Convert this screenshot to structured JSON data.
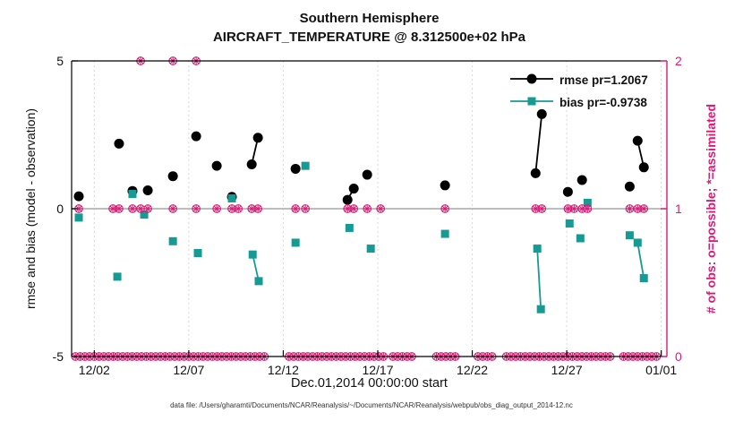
{
  "chart_data": {
    "type": "scatter",
    "title": "Southern Hemisphere",
    "subtitle": "AIRCRAFT_TEMPERATURE @ 8.312500e+02 hPa",
    "xlabel": "Dec.01,2014 00:00:00 start",
    "ylabel_left": "rmse and bias (model - observation)",
    "ylabel_right": "# of obs: o=possible; *=assimilated",
    "x_domain": [
      0.8,
      32.3
    ],
    "y_left_domain": [
      -5,
      5
    ],
    "y_right_domain": [
      0,
      2
    ],
    "x_ticks": [
      {
        "day": 2,
        "label": "12/02"
      },
      {
        "day": 7,
        "label": "12/07"
      },
      {
        "day": 12,
        "label": "12/12"
      },
      {
        "day": 17,
        "label": "12/17"
      },
      {
        "day": 22,
        "label": "12/22"
      },
      {
        "day": 27,
        "label": "12/27"
      },
      {
        "day": 32,
        "label": "01/01"
      }
    ],
    "left_ticks": [
      {
        "v": -5,
        "label": "-5"
      },
      {
        "v": 0,
        "label": "0"
      },
      {
        "v": 5,
        "label": "5"
      }
    ],
    "right_ticks": [
      {
        "v": 0,
        "label": "0"
      },
      {
        "v": 1,
        "label": "1"
      },
      {
        "v": 2,
        "label": "2"
      }
    ],
    "series": [
      {
        "name": "rmse",
        "marker": "circle",
        "color": "#000000",
        "legend_label": "rmse pr=1.2067",
        "segments": [
          [
            [
              1.18,
              0.42
            ]
          ],
          [
            [
              3.31,
              2.2
            ]
          ],
          [
            [
              4.02,
              0.6
            ]
          ],
          [
            [
              4.83,
              0.62
            ]
          ],
          [
            [
              6.16,
              1.1
            ]
          ],
          [
            [
              7.39,
              2.45
            ]
          ],
          [
            [
              8.48,
              1.45
            ]
          ],
          [
            [
              9.28,
              0.4
            ]
          ],
          [
            [
              10.33,
              1.5
            ],
            [
              10.66,
              2.4
            ]
          ],
          [
            [
              12.65,
              1.35
            ]
          ],
          [
            [
              15.4,
              0.3
            ],
            [
              15.73,
              0.68
            ]
          ],
          [
            [
              16.44,
              1.15
            ]
          ],
          [
            [
              20.56,
              0.79
            ]
          ],
          [
            [
              25.35,
              1.2
            ],
            [
              25.68,
              3.2
            ]
          ],
          [
            [
              27.06,
              0.57
            ]
          ],
          [
            [
              27.81,
              0.97
            ]
          ],
          [
            [
              30.33,
              0.75
            ]
          ],
          [
            [
              30.75,
              2.3
            ],
            [
              31.08,
              1.4
            ]
          ]
        ]
      },
      {
        "name": "bias",
        "marker": "square",
        "color": "#169a94",
        "legend_label": "bias pr=-0.9738",
        "segments": [
          [
            [
              1.18,
              -0.3
            ]
          ],
          [
            [
              3.22,
              -2.3
            ]
          ],
          [
            [
              4.02,
              0.5
            ]
          ],
          [
            [
              4.64,
              -0.2
            ]
          ],
          [
            [
              6.16,
              -1.1
            ]
          ],
          [
            [
              7.48,
              -1.5
            ]
          ],
          [
            [
              9.28,
              0.35
            ]
          ],
          [
            [
              10.38,
              -1.55
            ],
            [
              10.7,
              -2.45
            ]
          ],
          [
            [
              12.65,
              -1.15
            ]
          ],
          [
            [
              13.17,
              1.45
            ]
          ],
          [
            [
              15.5,
              -0.65
            ]
          ],
          [
            [
              16.63,
              -1.35
            ]
          ],
          [
            [
              20.56,
              -0.85
            ]
          ],
          [
            [
              25.44,
              -1.35
            ],
            [
              25.63,
              -3.4
            ]
          ],
          [
            [
              27.15,
              -0.5
            ]
          ],
          [
            [
              27.72,
              -1.0
            ]
          ],
          [
            [
              28.1,
              0.2
            ]
          ],
          [
            [
              30.33,
              -0.9
            ]
          ],
          [
            [
              30.75,
              -1.15
            ],
            [
              31.08,
              -2.35
            ]
          ]
        ]
      }
    ],
    "obs_markers": {
      "color": "#d81b74",
      "top_days": [
        4.45,
        6.16,
        7.39
      ],
      "mid_days": [
        1.18,
        2.98,
        3.31,
        4.02,
        4.45,
        4.83,
        6.16,
        7.39,
        8.48,
        9.28,
        9.62,
        10.33,
        10.66,
        12.65,
        13.17,
        15.4,
        15.73,
        16.44,
        17.15,
        20.56,
        25.35,
        25.68,
        27.06,
        27.39,
        27.81,
        28.1,
        30.33,
        30.75,
        31.08
      ],
      "bottom_ranges": [
        [
          1.0,
          11.0
        ],
        [
          12.3,
          17.3
        ],
        [
          17.8,
          18.9
        ],
        [
          20.1,
          21.3
        ],
        [
          22.3,
          23.2
        ],
        [
          23.8,
          29.3
        ],
        [
          30.0,
          31.9
        ]
      ],
      "bottom_step": 0.25
    }
  },
  "caption": "data file: /Users/gharamti/Documents/NCAR/Reanalysis/~/Documents/NCAR/Reanalysis/webpub/obs_diag_output_2014-12.nc",
  "colors": {
    "zero_line": "#bdbdbd",
    "grid": "#d8d8d8",
    "axis_black": "#000000"
  }
}
